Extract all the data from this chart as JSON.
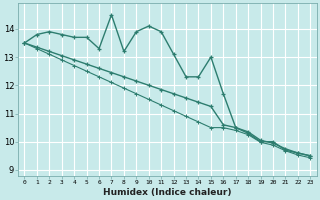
{
  "xlabel": "Humidex (Indice chaleur)",
  "background_color": "#c8eaea",
  "grid_color": "#b8d8d8",
  "line_color": "#2d7d6f",
  "ylim": [
    8.8,
    14.9
  ],
  "xlim": [
    -0.5,
    23.5
  ],
  "yticks": [
    9,
    10,
    11,
    12,
    13,
    14
  ],
  "x_ticks": [
    0,
    1,
    2,
    3,
    4,
    5,
    6,
    7,
    8,
    9,
    10,
    11,
    12,
    13,
    14,
    15,
    16,
    17,
    18,
    19,
    20,
    21,
    22,
    23
  ],
  "series1_x": [
    0,
    1,
    2,
    3,
    4,
    5,
    6,
    7,
    8,
    9,
    10,
    11,
    12,
    13,
    14,
    15,
    16,
    17,
    18,
    19,
    20,
    21,
    22,
    23
  ],
  "series1_y": [
    13.5,
    13.8,
    13.9,
    13.8,
    13.7,
    13.7,
    13.3,
    14.5,
    13.2,
    13.9,
    14.1,
    13.9,
    13.1,
    12.3,
    12.3,
    13.0,
    11.7,
    10.5,
    10.3,
    10.0,
    10.0,
    9.7,
    9.6,
    9.5
  ],
  "series2_x": [
    0,
    1,
    2,
    3,
    4,
    5,
    6,
    7,
    8,
    9,
    10,
    11,
    12,
    13,
    14,
    15,
    16,
    17,
    18,
    19,
    20,
    21,
    22,
    23
  ],
  "series2_y": [
    13.5,
    13.35,
    13.2,
    13.05,
    12.9,
    12.75,
    12.6,
    12.45,
    12.3,
    12.15,
    12.0,
    11.85,
    11.7,
    11.55,
    11.4,
    11.25,
    10.6,
    10.5,
    10.35,
    10.05,
    9.95,
    9.75,
    9.6,
    9.5
  ],
  "series3_x": [
    0,
    1,
    2,
    3,
    4,
    5,
    6,
    7,
    8,
    9,
    10,
    11,
    12,
    13,
    14,
    15,
    16,
    17,
    18,
    19,
    20,
    21,
    22,
    23
  ],
  "series3_y": [
    13.5,
    13.3,
    13.1,
    12.9,
    12.7,
    12.5,
    12.3,
    12.1,
    11.9,
    11.7,
    11.5,
    11.3,
    11.1,
    10.9,
    10.7,
    10.5,
    10.5,
    10.4,
    10.25,
    9.98,
    9.88,
    9.68,
    9.53,
    9.43
  ]
}
